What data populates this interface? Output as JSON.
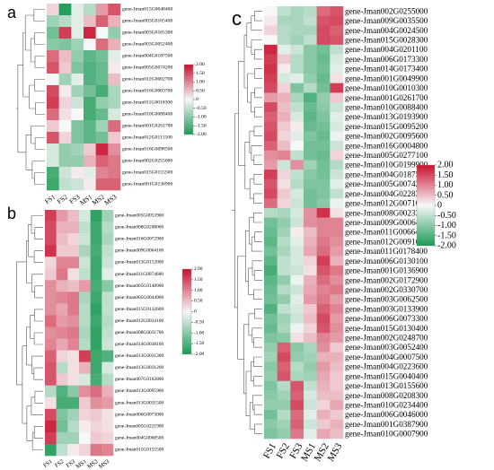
{
  "chart_data": [
    {
      "type": "heatmap",
      "panel_label": "a",
      "columns": [
        "FS1",
        "FS2",
        "FS3",
        "MS1",
        "MS2",
        "MS3"
      ],
      "rows": [
        "gene-Jman015G0040400",
        "gene-Jman003G0165400",
        "gene-Jman003G0165300",
        "gene-Jman003G0052400",
        "gene-Jman004G0187500",
        "gene-Jman005G0074200",
        "gene-Jman012G0002700",
        "gene-Jman016G0003700",
        "gene-Jman011G0018300",
        "gene-Jman010G0088400",
        "gene-Jman001G0261700",
        "gene-Jman012G0111500",
        "gene-Jman016G0098500",
        "gene-Jman002G0255000",
        "gene-Jman015G0155500",
        "gene-Jman001G0136900"
      ],
      "values": [
        [
          0.3,
          -1.9,
          -0.2,
          -0.6,
          0.8,
          1.4
        ],
        [
          -0.8,
          -0.6,
          -0.2,
          0.5,
          1.3,
          0.6
        ],
        [
          -1.2,
          1.6,
          -0.2,
          1.8,
          0.0,
          -0.9
        ],
        [
          -1.0,
          -1.1,
          -0.8,
          0.0,
          1.2,
          0.6
        ],
        [
          1.2,
          0.5,
          -0.9,
          -1.4,
          -1.2,
          -0.2
        ],
        [
          1.4,
          0.4,
          -1.1,
          -1.5,
          -1.3,
          0.1
        ],
        [
          0.0,
          -0.8,
          -0.2,
          -1.5,
          -1.3,
          0.5
        ],
        [
          1.5,
          0.1,
          -0.8,
          -1.2,
          -1.6,
          -0.7
        ],
        [
          1.6,
          0.3,
          -0.4,
          -1.6,
          -0.9,
          -0.7
        ],
        [
          1.2,
          0.2,
          0.0,
          -1.6,
          -1.3,
          -0.3
        ],
        [
          0.4,
          0.0,
          -1.1,
          -1.4,
          -0.8,
          1.2
        ],
        [
          1.4,
          0.3,
          -1.1,
          -1.4,
          -1.2,
          0.4
        ],
        [
          -0.3,
          -0.9,
          -0.8,
          0.4,
          1.8,
          0.9
        ],
        [
          -0.3,
          -0.9,
          -0.9,
          0.6,
          1.3,
          1.1
        ],
        [
          -1.6,
          -0.4,
          0.1,
          -0.2,
          1.0,
          1.1
        ],
        [
          -1.7,
          -0.5,
          -0.4,
          0.1,
          1.3,
          1.3
        ]
      ],
      "colorbar_ticks": [
        "2.00",
        "1.50",
        "1.00",
        "0.50",
        "0",
        "-0.50",
        "-1.00",
        "-1.50",
        "-2.00"
      ],
      "vmin": -2,
      "vmax": 2
    },
    {
      "type": "heatmap",
      "panel_label": "b",
      "columns": [
        "FS1",
        "FS2",
        "FS3",
        "MS1",
        "MS2",
        "MS3"
      ],
      "rows": [
        "gene-Jman005G0053900",
        "gene-Jman008G0208000",
        "gene-Jman016G0072900",
        "gene-Jman009G0004100",
        "gene-Jman013G0152000",
        "gene-Jman011G0074600",
        "gene-Jman005G0148900",
        "gene-Jman005G0044900",
        "gene-Jman015G0132600",
        "gene-Jman012G0034100",
        "gene-Jman008G0031700",
        "gene-Jman014G0038100",
        "gene-Jman013G0031300",
        "gene-Jman013G0031200",
        "gene-Jman007G0102800",
        "gene-Jman013G0095900",
        "gene-Jman013G0031500",
        "gene-Jman006G0073000",
        "gene-Jman005G0221900",
        "gene-Jman004G0068500",
        "gene-Jman015G0155500"
      ],
      "values": [
        [
          1.6,
          0.8,
          0.5,
          -0.3,
          -1.8,
          -0.8
        ],
        [
          1.5,
          0.6,
          0.6,
          -0.5,
          -1.7,
          -0.6
        ],
        [
          1.5,
          0.5,
          0.3,
          -0.4,
          -1.7,
          -0.7
        ],
        [
          1.7,
          0.4,
          0.4,
          -0.7,
          -1.6,
          -0.5
        ],
        [
          0.3,
          1.0,
          1.0,
          -0.4,
          -1.7,
          -0.4
        ],
        [
          0.4,
          1.1,
          0.2,
          -0.5,
          -1.7,
          -0.2
        ],
        [
          0.9,
          0.6,
          0.5,
          0.8,
          -1.6,
          -1.0
        ],
        [
          0.9,
          1.0,
          1.1,
          -0.7,
          -1.7,
          -0.5
        ],
        [
          0.9,
          0.7,
          1.1,
          -0.6,
          -1.8,
          -0.5
        ],
        [
          1.2,
          0.8,
          0.9,
          -0.6,
          -1.7,
          -0.6
        ],
        [
          0.9,
          1.0,
          1.1,
          -0.7,
          -1.8,
          -0.5
        ],
        [
          1.0,
          0.7,
          1.0,
          -0.6,
          -1.8,
          -0.4
        ],
        [
          1.3,
          0.3,
          0.2,
          1.6,
          -1.7,
          -1.5
        ],
        [
          1.4,
          -0.6,
          0.2,
          0.6,
          -1.7,
          -0.3
        ],
        [
          1.4,
          0.4,
          0.2,
          -0.3,
          -1.6,
          -0.6
        ],
        [
          -0.6,
          -1.5,
          -1.0,
          0.9,
          1.2,
          0.6
        ],
        [
          0.2,
          -1.6,
          -1.6,
          0.4,
          0.9,
          0.8
        ],
        [
          1.5,
          -1.1,
          -0.8,
          0.3,
          0.4,
          0.2
        ],
        [
          1.8,
          -1.2,
          -0.6,
          0.1,
          0.3,
          0.2
        ],
        [
          1.6,
          -0.8,
          -0.8,
          0.0,
          0.4,
          0.3
        ],
        [
          -1.8,
          -0.5,
          0.1,
          0.3,
          1.1,
          1.0
        ]
      ],
      "colorbar_ticks": [
        "2.00",
        "1.50",
        "1.00",
        "0.50",
        "0",
        "-0.50",
        "-1.00",
        "-1.50",
        "-2.00"
      ],
      "vmin": -2,
      "vmax": 2
    },
    {
      "type": "heatmap",
      "panel_label": "c",
      "columns": [
        "FS1",
        "FS2",
        "FS3",
        "MS1",
        "MS2",
        "MS3"
      ],
      "rows": [
        "gene-Jman002G0255000",
        "gene-Jman009G0035500",
        "gene-Jman004G0024500",
        "gene-Jman015G0028300",
        "gene-Jman004G0201100",
        "gene-Jman006G0173300",
        "gene-Jman014G0173400",
        "gene-Jman001G0049900",
        "gene-Jman010G0010300",
        "gene-Jman001G0261700",
        "gene-Jman010G0088400",
        "gene-Jman013G0193900",
        "gene-Jman015G0095200",
        "gene-Jman002G0095600",
        "gene-Jman016G0004800",
        "gene-Jman005G0277100",
        "gene-Jman010G0199900",
        "gene-Jman004G0187500",
        "gene-Jman005G0074200",
        "gene-Jman004G0228300",
        "gene-Jman012G0071000",
        "gene-Jman008G0023300",
        "gene-Jman009G0006400",
        "gene-Jman011G0066400",
        "gene-Jman012G0091600",
        "gene-Jman011G0178400",
        "gene-Jman006G0130100",
        "gene-Jman001G0136900",
        "gene-Jman002G0172900",
        "gene-Jman002G0330700",
        "gene-Jman003G0062500",
        "gene-Jman003G0133900",
        "gene-Jman006G0073300",
        "gene-Jman015G0130400",
        "gene-Jman002G0248700",
        "gene-Jman003G0052400",
        "gene-Jman004G0007500",
        "gene-Jman004G0223600",
        "gene-Jman015G0040400",
        "gene-Jman013G0155600",
        "gene-Jman008G0208300",
        "gene-Jman010G0234400",
        "gene-Jman006G0046000",
        "gene-Jman001G0387900",
        "gene-Jman010G0007900"
      ],
      "values": [
        [
          0.0,
          -0.5,
          -0.7,
          -0.6,
          1.2,
          1.4
        ],
        [
          0.1,
          -0.7,
          -0.7,
          -0.5,
          1.4,
          1.5
        ],
        [
          0.3,
          -0.6,
          -0.7,
          -0.7,
          1.5,
          1.3
        ],
        [
          0.0,
          -0.6,
          -0.8,
          -0.5,
          1.5,
          1.4
        ],
        [
          1.8,
          -0.2,
          -0.4,
          -1.0,
          -1.2,
          -0.5
        ],
        [
          1.6,
          0.4,
          -0.6,
          -1.0,
          -1.3,
          -0.3
        ],
        [
          1.7,
          0.1,
          -0.6,
          -1.0,
          -1.2,
          -0.2
        ],
        [
          1.6,
          -0.3,
          -0.2,
          -0.9,
          -1.3,
          0.2
        ],
        [
          1.5,
          0.3,
          -1.1,
          -0.6,
          -1.2,
          1.6
        ],
        [
          0.8,
          0.6,
          -0.7,
          -1.5,
          -0.9,
          0.4
        ],
        [
          1.5,
          0.5,
          -0.5,
          -1.3,
          -1.0,
          -0.4
        ],
        [
          1.3,
          0.6,
          -0.3,
          -1.4,
          -1.1,
          -0.2
        ],
        [
          1.4,
          0.4,
          0.1,
          -1.3,
          -1.2,
          -0.3
        ],
        [
          1.5,
          0.3,
          -0.2,
          -1.1,
          -1.3,
          -0.1
        ],
        [
          1.3,
          0.5,
          0.0,
          -1.2,
          -1.2,
          -0.4
        ],
        [
          0.9,
          1.0,
          -0.5,
          -1.2,
          -1.3,
          0.3
        ],
        [
          0.8,
          -0.4,
          0.9,
          -0.8,
          -1.2,
          -0.6
        ],
        [
          1.6,
          0.3,
          -0.5,
          -1.0,
          -1.2,
          -0.4
        ],
        [
          1.4,
          0.2,
          -0.6,
          -1.1,
          -1.1,
          -0.2
        ],
        [
          1.5,
          0.4,
          -0.3,
          -1.2,
          -1.1,
          -0.5
        ],
        [
          1.2,
          0.3,
          -0.4,
          -1.2,
          -1.0,
          -0.1
        ],
        [
          -0.6,
          -0.7,
          -0.3,
          0.9,
          1.7,
          0.2
        ],
        [
          -1.2,
          -0.9,
          -0.4,
          0.9,
          1.0,
          1.0
        ],
        [
          -1.3,
          -0.8,
          0.1,
          0.5,
          1.0,
          1.0
        ],
        [
          -1.4,
          -0.6,
          -0.2,
          0.6,
          1.1,
          0.9
        ],
        [
          -1.2,
          -0.7,
          -0.3,
          0.7,
          1.2,
          0.8
        ],
        [
          -1.4,
          -0.5,
          -0.3,
          0.3,
          1.6,
          0.6
        ],
        [
          -1.6,
          -0.5,
          -0.4,
          0.2,
          1.4,
          1.1
        ],
        [
          -1.4,
          -0.9,
          -0.1,
          0.6,
          1.2,
          0.9
        ],
        [
          -1.3,
          -0.6,
          -0.4,
          0.7,
          1.0,
          1.1
        ],
        [
          -1.2,
          -0.9,
          -0.2,
          0.8,
          1.1,
          0.8
        ],
        [
          -1.5,
          -0.5,
          -0.3,
          0.4,
          1.3,
          1.0
        ],
        [
          -1.2,
          -0.8,
          -0.4,
          0.5,
          1.5,
          0.8
        ],
        [
          -1.3,
          -0.7,
          -0.1,
          0.3,
          1.4,
          0.9
        ],
        [
          -1.1,
          -1.0,
          0.2,
          0.5,
          1.0,
          0.8
        ],
        [
          -0.9,
          1.3,
          -1.0,
          -0.7,
          0.9,
          0.4
        ],
        [
          -0.8,
          1.5,
          -0.9,
          -0.8,
          0.6,
          0.6
        ],
        [
          -1.0,
          1.3,
          -0.6,
          -0.9,
          0.8,
          0.5
        ],
        [
          -0.9,
          1.4,
          -0.7,
          -0.8,
          0.7,
          0.4
        ],
        [
          -1.1,
          -0.6,
          1.4,
          -0.5,
          0.6,
          0.4
        ],
        [
          -1.0,
          -0.8,
          1.3,
          -0.3,
          0.5,
          0.5
        ],
        [
          -0.9,
          -0.9,
          1.5,
          -0.4,
          0.3,
          0.7
        ],
        [
          -1.2,
          -0.6,
          1.2,
          -0.2,
          0.6,
          0.4
        ],
        [
          -1.0,
          -0.8,
          1.3,
          -0.4,
          0.4,
          0.6
        ],
        [
          -1.1,
          -0.9,
          1.1,
          -0.2,
          0.7,
          0.5
        ]
      ],
      "colorbar_ticks": [
        "2.00",
        "1.50",
        "1.00",
        "0.50",
        "0",
        "-0.50",
        "-1.00",
        "-1.50",
        "-2.00"
      ],
      "vmin": -2,
      "vmax": 2
    }
  ],
  "colors": {
    "low": "#1b9a55",
    "mid": "#f7f7f7",
    "high": "#c8102e"
  }
}
